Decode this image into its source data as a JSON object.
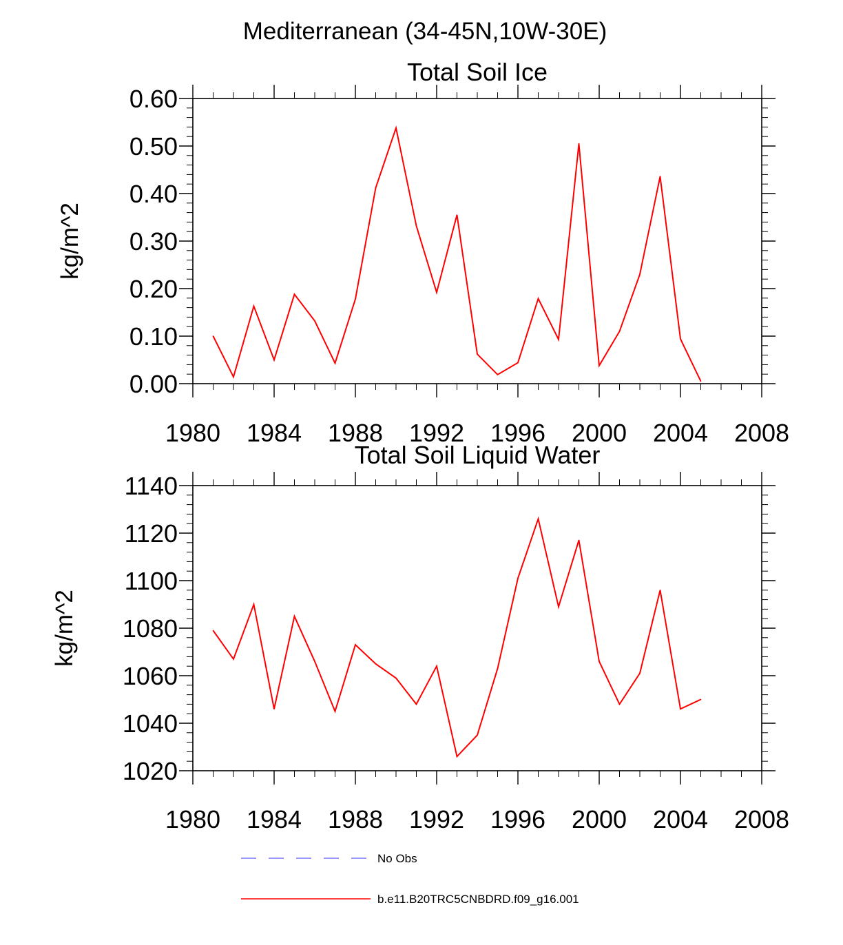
{
  "figure": {
    "suptitle": "Mediterranean (34-45N,10W-30E)"
  },
  "chart_data": [
    {
      "type": "line",
      "title": "Total Soil Ice",
      "ylabel": "kg/m^2",
      "xlabel": "",
      "xlim": [
        1980,
        2008
      ],
      "ylim": [
        0.0,
        0.6
      ],
      "xticks": [
        1980,
        1984,
        1988,
        1992,
        1996,
        2000,
        2004,
        2008
      ],
      "yticks": [
        "0.00",
        "0.10",
        "0.20",
        "0.30",
        "0.40",
        "0.50",
        "0.60"
      ],
      "ytick_values": [
        0.0,
        0.1,
        0.2,
        0.3,
        0.4,
        0.5,
        0.6
      ],
      "series": [
        {
          "name": "b.e11.B20TRC5CNBDRD.f09_g16.001",
          "color": "#ff0000",
          "x": [
            1981,
            1982,
            1983,
            1984,
            1985,
            1986,
            1987,
            1988,
            1989,
            1990,
            1991,
            1992,
            1993,
            1994,
            1995,
            1996,
            1997,
            1998,
            1999,
            2000,
            2001,
            2002,
            2003,
            2004,
            2005
          ],
          "values": [
            0.1,
            0.014,
            0.163,
            0.05,
            0.188,
            0.132,
            0.043,
            0.178,
            0.412,
            0.538,
            0.332,
            0.192,
            0.355,
            0.062,
            0.019,
            0.044,
            0.179,
            0.093,
            0.505,
            0.038,
            0.11,
            0.23,
            0.436,
            0.094,
            0.005
          ]
        }
      ]
    },
    {
      "type": "line",
      "title": "Total Soil Liquid Water",
      "ylabel": "kg/m^2",
      "xlabel": "",
      "xlim": [
        1980,
        2008
      ],
      "ylim": [
        1020,
        1140
      ],
      "xticks": [
        1980,
        1984,
        1988,
        1992,
        1996,
        2000,
        2004,
        2008
      ],
      "yticks": [
        "1020",
        "1040",
        "1060",
        "1080",
        "1100",
        "1120",
        "1140"
      ],
      "ytick_values": [
        1020,
        1040,
        1060,
        1080,
        1100,
        1120,
        1140
      ],
      "series": [
        {
          "name": "b.e11.B20TRC5CNBDRD.f09_g16.001",
          "color": "#ff0000",
          "x": [
            1981,
            1982,
            1983,
            1984,
            1985,
            1986,
            1987,
            1988,
            1989,
            1990,
            1991,
            1992,
            1993,
            1994,
            1995,
            1996,
            1997,
            1998,
            1999,
            2000,
            2001,
            2002,
            2003,
            2004,
            2005
          ],
          "values": [
            1079,
            1067,
            1090,
            1046,
            1085,
            1066,
            1045,
            1073,
            1065,
            1059,
            1048,
            1064,
            1026,
            1035,
            1063,
            1101,
            1126,
            1089,
            1117,
            1066,
            1048,
            1061,
            1096,
            1046,
            1050
          ]
        }
      ]
    }
  ],
  "legend": [
    {
      "label": "No Obs",
      "color": "#7777ff",
      "style": "dashed"
    },
    {
      "label": "b.e11.B20TRC5CNBDRD.f09_g16.001",
      "color": "#ff0000",
      "style": "solid"
    }
  ]
}
